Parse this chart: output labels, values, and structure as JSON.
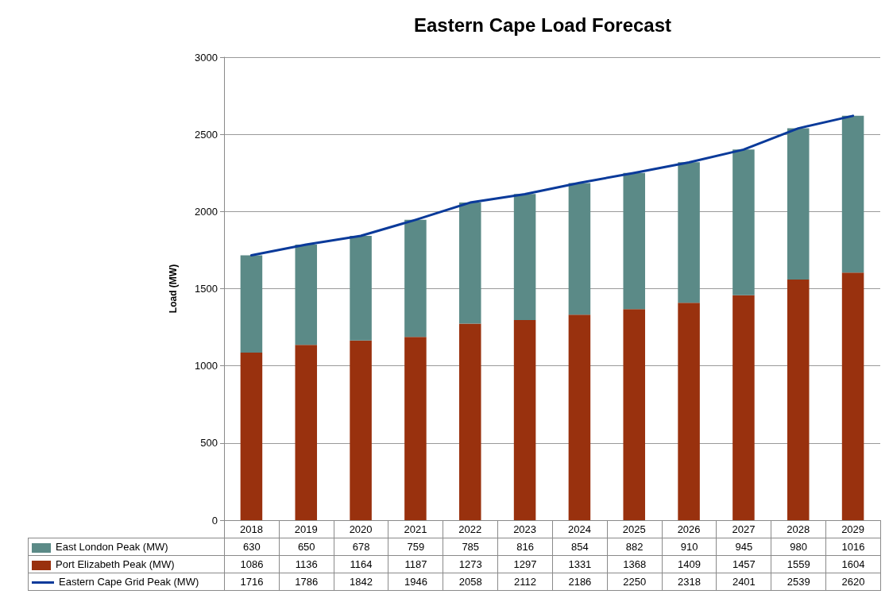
{
  "chart_data": {
    "type": "bar",
    "title": "Eastern Cape Load Forecast",
    "ylabel": "Load (MW)",
    "categories": [
      "2018",
      "2019",
      "2020",
      "2021",
      "2022",
      "2023",
      "2024",
      "2025",
      "2026",
      "2027",
      "2028",
      "2029"
    ],
    "series": [
      {
        "name": "Port Elizabeth Peak (MW)",
        "color": "#99310e",
        "values": [
          1086,
          1136,
          1164,
          1187,
          1273,
          1297,
          1331,
          1368,
          1409,
          1457,
          1559,
          1604
        ]
      },
      {
        "name": "East London  Peak (MW)",
        "color": "#5b8a87",
        "values": [
          630,
          650,
          678,
          759,
          785,
          816,
          854,
          882,
          910,
          945,
          980,
          1016
        ]
      },
      {
        "name": "Eastern Cape  Grid Peak (MW)",
        "type": "line",
        "color": "#0a3a9a",
        "marker": "none",
        "values": [
          1716,
          1786,
          1842,
          1946,
          2058,
          2112,
          2186,
          2250,
          2318,
          2401,
          2539,
          2620
        ]
      }
    ],
    "stacked": true,
    "ylim": [
      0,
      3000
    ],
    "yticks": [
      0,
      500,
      1000,
      1500,
      2000,
      2500,
      3000
    ],
    "grid": "y",
    "legend": "bottom left",
    "data_labels": true
  }
}
